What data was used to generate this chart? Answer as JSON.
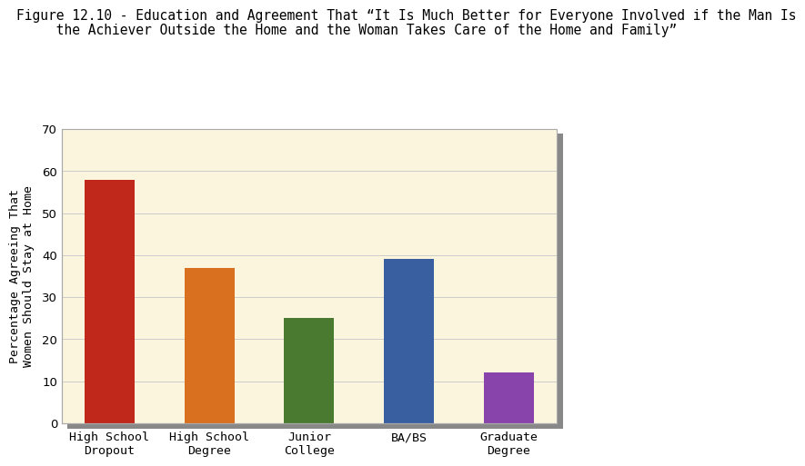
{
  "title_line1": "Figure 12.10 - Education and Agreement That “It Is Much Better for Everyone Involved if the Man Is",
  "title_line2": "     the Achiever Outside the Home and the Woman Takes Care of the Home and Family”",
  "categories": [
    "High School\nDropout",
    "High School\nDegree",
    "Junior\nCollege",
    "BA/BS",
    "Graduate\nDegree"
  ],
  "values": [
    58,
    37,
    25,
    39,
    12
  ],
  "bar_colors": [
    "#c0281c",
    "#d97020",
    "#4a7a30",
    "#3a5fa0",
    "#8844aa"
  ],
  "ylabel_line1": "Percentage Agreeing That",
  "ylabel_line2": "Women Should Stay at Home",
  "ylim": [
    0,
    70
  ],
  "yticks": [
    0,
    10,
    20,
    30,
    40,
    50,
    60,
    70
  ],
  "plot_bg_color": "#faf5dc",
  "outer_bg_color": "#ffffff",
  "grid_color": "#cccccc",
  "title_fontsize": 10.5,
  "axis_label_fontsize": 9.5,
  "tick_fontsize": 9.5
}
